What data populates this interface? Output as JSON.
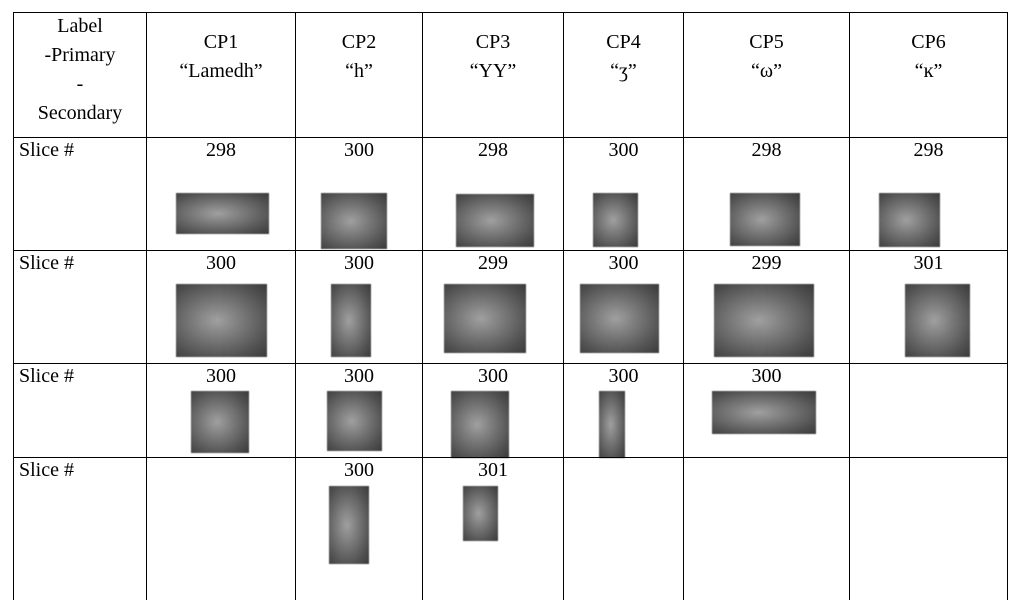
{
  "table": {
    "header": [
      [
        "Label",
        "-Primary",
        "-",
        "Secondary"
      ],
      [
        "CP1",
        "“Lamedh”"
      ],
      [
        "CP2",
        "“h”"
      ],
      [
        "CP3",
        "“YY”"
      ],
      [
        "CP4",
        "“ʒ”"
      ],
      [
        "CP5",
        "“ω”"
      ],
      [
        "CP6",
        "“ĸ”"
      ]
    ],
    "rows": [
      [
        "Slice #",
        298,
        300,
        298,
        300,
        298,
        298
      ],
      [
        "Slice #",
        300,
        300,
        299,
        300,
        299,
        301
      ],
      [
        "Slice #",
        300,
        300,
        300,
        300,
        300,
        null
      ],
      [
        "Slice #",
        null,
        300,
        301,
        null,
        null,
        null
      ]
    ]
  }
}
